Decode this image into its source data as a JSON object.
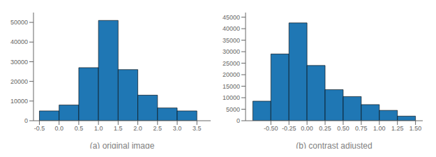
{
  "chart_data": [
    {
      "type": "histogram",
      "xlabel": "(a) original image",
      "bins": [
        -0.5,
        0.0,
        0.5,
        1.0,
        1.5,
        2.0,
        2.5,
        3.0,
        3.5
      ],
      "values": [
        5000,
        8000,
        27000,
        51000,
        26000,
        13000,
        6500,
        5000
      ],
      "color": "#1f77b4",
      "xlim": [
        -0.65,
        3.85
      ],
      "xticks": [
        -0.5,
        {
          "value": 0.0,
          "label": "0.0"
        },
        0.5,
        {
          "value": 1.0,
          "label": "1.0"
        },
        1.5,
        {
          "value": 2.0,
          "label": "2.0"
        },
        2.5,
        {
          "value": 3.0,
          "label": "3.0"
        },
        3.5
      ],
      "ylim": [
        0,
        55000
      ],
      "yticks": [
        0,
        10000,
        20000,
        30000,
        40000,
        50000
      ]
    },
    {
      "type": "histogram",
      "xlabel": "(b) contrast adjusted",
      "bins": [
        -0.75,
        -0.5,
        -0.25,
        0.0,
        0.25,
        0.5,
        0.75,
        1.0,
        1.25,
        1.5
      ],
      "values": [
        8500,
        29000,
        42500,
        24000,
        13500,
        10500,
        7000,
        4500,
        2000
      ],
      "color": "#1f77b4",
      "xlim": [
        -0.85,
        1.6
      ],
      "xticks": [
        {
          "value": -0.5,
          "label": "-0.50"
        },
        -0.25,
        {
          "value": 0.0,
          "label": "0.00"
        },
        0.25,
        {
          "value": 0.5,
          "label": "0.50"
        },
        0.75,
        {
          "value": 1.0,
          "label": "1.00"
        },
        1.25,
        {
          "value": 1.5,
          "label": "1.50"
        }
      ],
      "ylim": [
        0,
        47000
      ],
      "yticks": [
        0,
        5000,
        10000,
        15000,
        20000,
        25000,
        30000,
        35000,
        40000,
        45000
      ]
    }
  ]
}
